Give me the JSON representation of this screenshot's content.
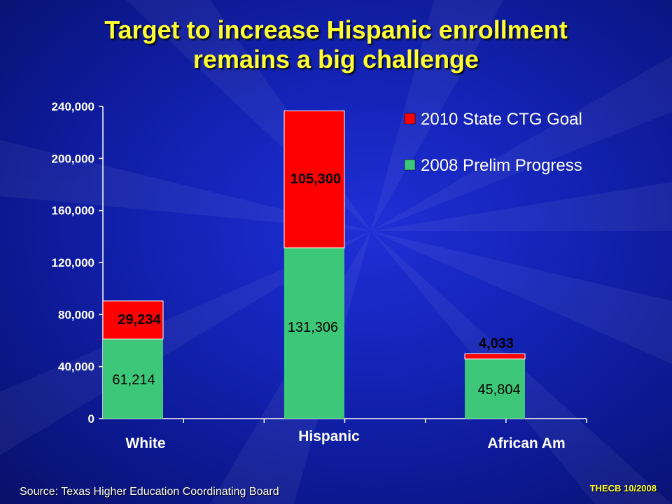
{
  "slide": {
    "title_line1": "Target to increase Hispanic enrollment",
    "title_line2": "remains a big challenge",
    "source": "Source: Texas Higher Education Coordinating Board",
    "credit": "THECB 10/2008"
  },
  "colors": {
    "goal": "#ff0000",
    "progress": "#3cc878",
    "title": "#ffff33",
    "axis_text": "#ffffff"
  },
  "chart_data": {
    "type": "bar",
    "stacked": true,
    "categories": [
      "White",
      "Hispanic",
      "African Am"
    ],
    "series": [
      {
        "name": "2008 Prelim Progress",
        "values": [
          61214,
          131306,
          45804
        ],
        "labels": [
          "61,214",
          "131,306",
          "45,804"
        ]
      },
      {
        "name": "2010 State CTG Goal",
        "values": [
          29234,
          105300,
          4033
        ],
        "labels": [
          "29,234",
          "105,300",
          "4,033"
        ]
      }
    ],
    "yticks": [
      "0",
      "40,000",
      "80,000",
      "120,000",
      "160,000",
      "200,000",
      "240,000"
    ],
    "ylim": [
      0,
      240000
    ],
    "legend": [
      "2010 State CTG Goal",
      "2008 Prelim Progress"
    ],
    "legend_position": "top-right",
    "grid": false
  }
}
